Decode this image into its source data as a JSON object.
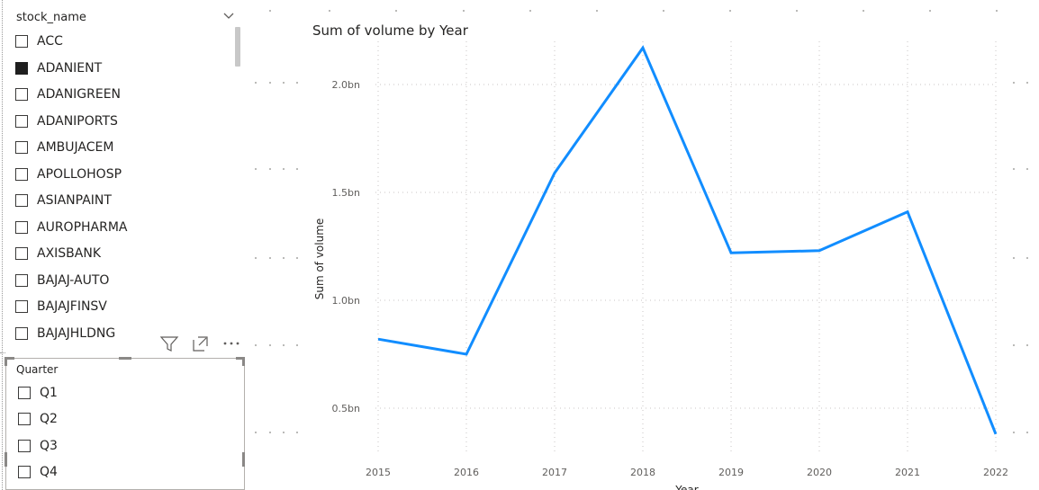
{
  "stock_slicer": {
    "title": "stock_name",
    "items": [
      {
        "label": "ACC",
        "checked": false
      },
      {
        "label": "ADANIENT",
        "checked": true
      },
      {
        "label": "ADANIGREEN",
        "checked": false
      },
      {
        "label": "ADANIPORTS",
        "checked": false
      },
      {
        "label": "AMBUJACEM",
        "checked": false
      },
      {
        "label": "APOLLOHOSP",
        "checked": false
      },
      {
        "label": "ASIANPAINT",
        "checked": false
      },
      {
        "label": "AUROPHARMA",
        "checked": false
      },
      {
        "label": "AXISBANK",
        "checked": false
      },
      {
        "label": "BAJAJ-AUTO",
        "checked": false
      },
      {
        "label": "BAJAJFINSV",
        "checked": false
      },
      {
        "label": "BAJAJHLDNG",
        "checked": false
      }
    ]
  },
  "visual_header": {
    "icons": [
      "filter-icon",
      "focus-mode-icon",
      "more-options-icon"
    ]
  },
  "quarter_slicer": {
    "title": "Quarter",
    "items": [
      {
        "label": "Q1",
        "checked": false
      },
      {
        "label": "Q2",
        "checked": false
      },
      {
        "label": "Q3",
        "checked": false
      },
      {
        "label": "Q4",
        "checked": false
      }
    ]
  },
  "colors": {
    "line": "#118DFF",
    "gridline": "#c8c6c4",
    "checked_box": "#1f1f1f"
  },
  "chart_data": {
    "type": "line",
    "title": "Sum of volume by Year",
    "xlabel": "Year",
    "ylabel": "Sum of volume",
    "categories": [
      "2015",
      "2016",
      "2017",
      "2018",
      "2019",
      "2020",
      "2021",
      "2022"
    ],
    "series": [
      {
        "values": [
          0.82,
          0.75,
          1.59,
          2.17,
          1.22,
          1.23,
          1.41,
          0.38
        ]
      }
    ],
    "unit": "bn",
    "yticks": [
      0.5,
      1.0,
      1.5,
      2.0
    ],
    "ytick_labels": [
      "0.5bn",
      "1.0bn",
      "1.5bn",
      "2.0bn"
    ],
    "ylim": [
      0.3,
      2.2
    ],
    "grid": true
  }
}
